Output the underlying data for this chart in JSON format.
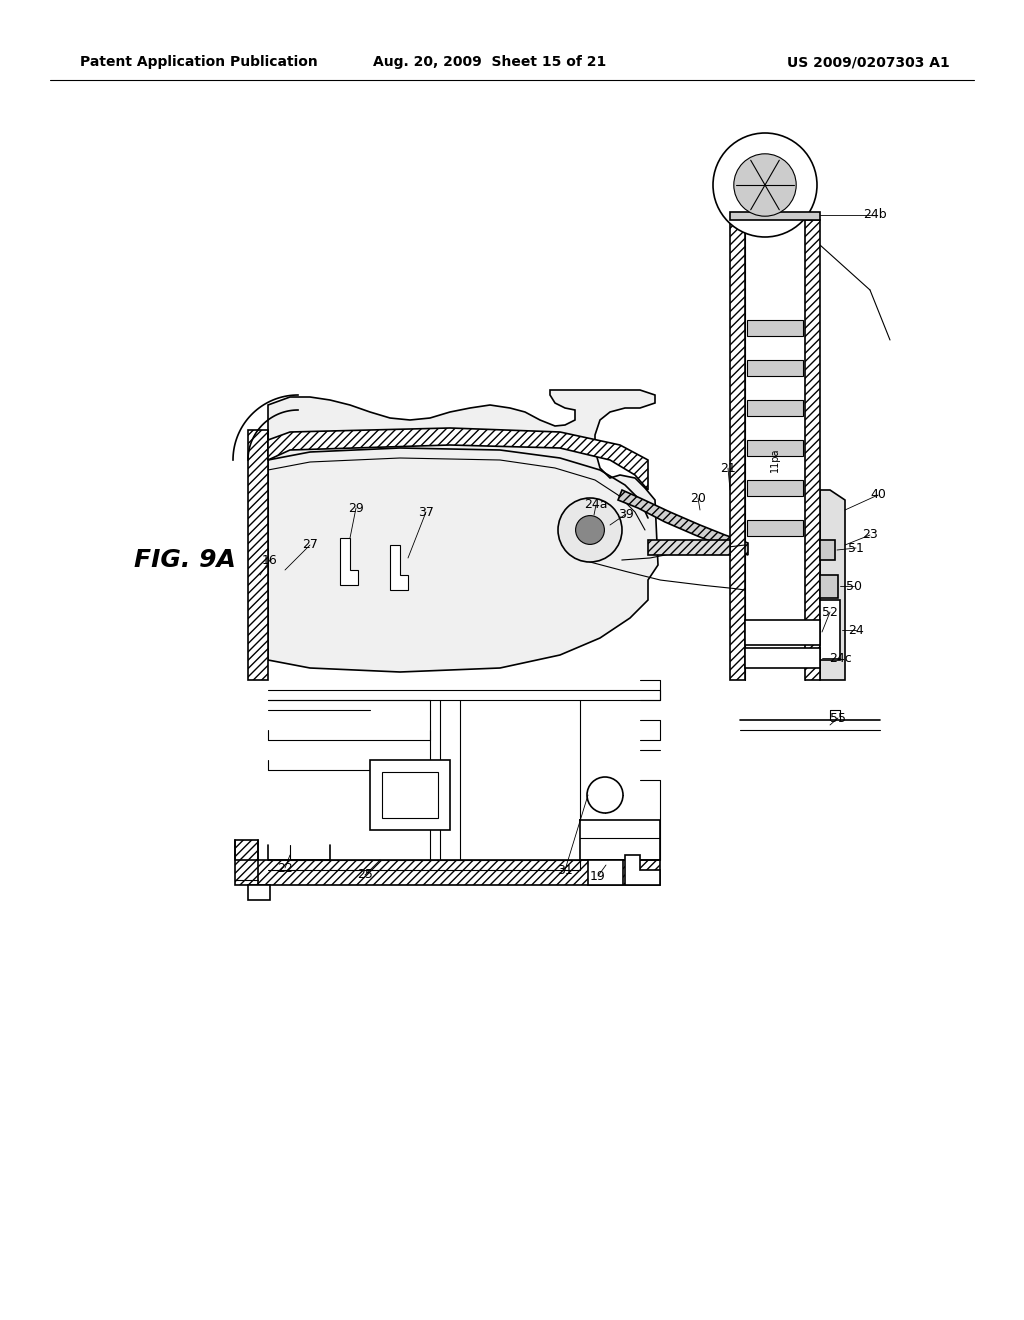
{
  "bg_color": "#ffffff",
  "line_color": "#000000",
  "header_left": "Patent Application Publication",
  "header_center": "Aug. 20, 2009  Sheet 15 of 21",
  "header_right": "US 2009/0207303 A1",
  "fig_label": "FIG. 9A",
  "header_fontsize": 10,
  "fig_label_fontsize": 18,
  "annotation_fontsize": 9
}
